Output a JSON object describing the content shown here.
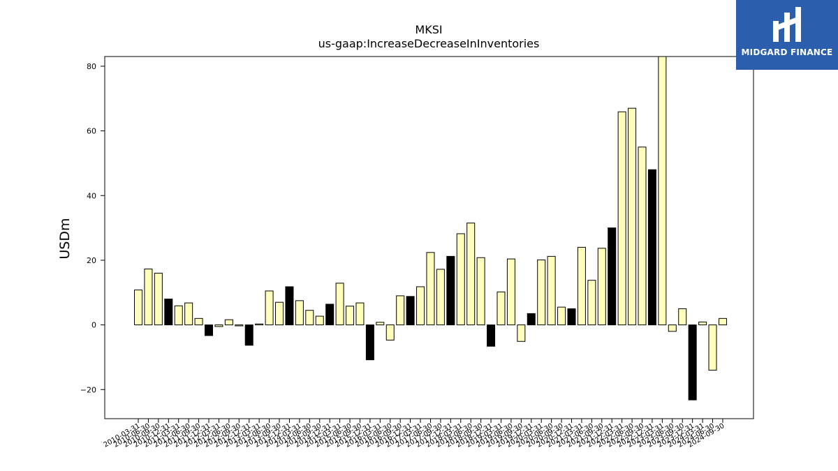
{
  "chart_data": {
    "type": "bar",
    "title": "MKSI",
    "subtitle": "us-gaap:IncreaseDecreaseInInventories",
    "xlabel": "",
    "ylabel": "USDm",
    "ylim": [
      -29,
      83
    ],
    "yticks": [
      -20,
      0,
      20,
      40,
      60,
      80
    ],
    "ytick_labels": [
      "−20",
      "0",
      "20",
      "40",
      "60",
      "80"
    ],
    "grid": false,
    "colors": {
      "default": "#ffffbb",
      "annual": "#000000",
      "edge": "#000000"
    },
    "categories": [
      "2010-03-31",
      "2010-06-30",
      "2010-09-30",
      "2010-12-31",
      "2011-03-31",
      "2011-06-30",
      "2011-09-30",
      "2011-12-31",
      "2012-03-31",
      "2012-06-30",
      "2012-09-30",
      "2012-12-31",
      "2013-03-31",
      "2013-06-30",
      "2013-09-30",
      "2013-12-31",
      "2014-03-31",
      "2014-06-30",
      "2014-09-30",
      "2014-12-31",
      "2015-03-31",
      "2015-06-30",
      "2015-09-30",
      "2015-12-31",
      "2016-03-31",
      "2016-06-30",
      "2016-09-30",
      "2016-12-31",
      "2017-03-31",
      "2017-06-30",
      "2017-09-30",
      "2017-12-31",
      "2018-03-31",
      "2018-06-30",
      "2018-09-30",
      "2018-12-31",
      "2019-03-31",
      "2019-06-30",
      "2019-09-30",
      "2019-12-31",
      "2020-03-31",
      "2020-06-30",
      "2020-09-30",
      "2020-12-31",
      "2021-03-31",
      "2021-06-30",
      "2021-09-30",
      "2021-12-31",
      "2022-03-31",
      "2022-06-30",
      "2022-09-30",
      "2022-12-31",
      "2023-03-31",
      "2023-06-30",
      "2023-09-30",
      "2023-12-31",
      "2024-03-31",
      "2024-06-30",
      "2024-09-30"
    ],
    "values": [
      10.8,
      17.3,
      16.0,
      8.0,
      5.9,
      6.8,
      2.0,
      -3.3,
      -0.5,
      1.6,
      -0.3,
      -6.3,
      0.3,
      10.5,
      7.0,
      11.8,
      7.5,
      4.5,
      2.7,
      6.4,
      12.9,
      5.8,
      6.8,
      -10.8,
      0.8,
      -4.7,
      9.0,
      8.8,
      11.8,
      22.4,
      17.2,
      21.2,
      28.2,
      31.5,
      20.8,
      -6.6,
      10.2,
      20.4,
      -5.1,
      3.5,
      20.1,
      21.2,
      5.5,
      5.0,
      24.0,
      13.8,
      23.7,
      30.0,
      65.9,
      67.0,
      55.0,
      48.0,
      85.5,
      -2.0,
      5.0,
      -23.2,
      0.9,
      -14.0,
      2.0
    ],
    "highlight": [
      false,
      false,
      false,
      true,
      false,
      false,
      false,
      true,
      false,
      false,
      false,
      true,
      false,
      false,
      false,
      true,
      false,
      false,
      false,
      true,
      false,
      false,
      false,
      true,
      false,
      false,
      false,
      true,
      false,
      false,
      false,
      true,
      false,
      false,
      false,
      true,
      false,
      false,
      false,
      true,
      false,
      false,
      false,
      true,
      false,
      false,
      false,
      true,
      false,
      false,
      false,
      true,
      false,
      false,
      false,
      true,
      false,
      false,
      false
    ]
  },
  "logo": {
    "text": "MIDGARD FINANCE"
  }
}
